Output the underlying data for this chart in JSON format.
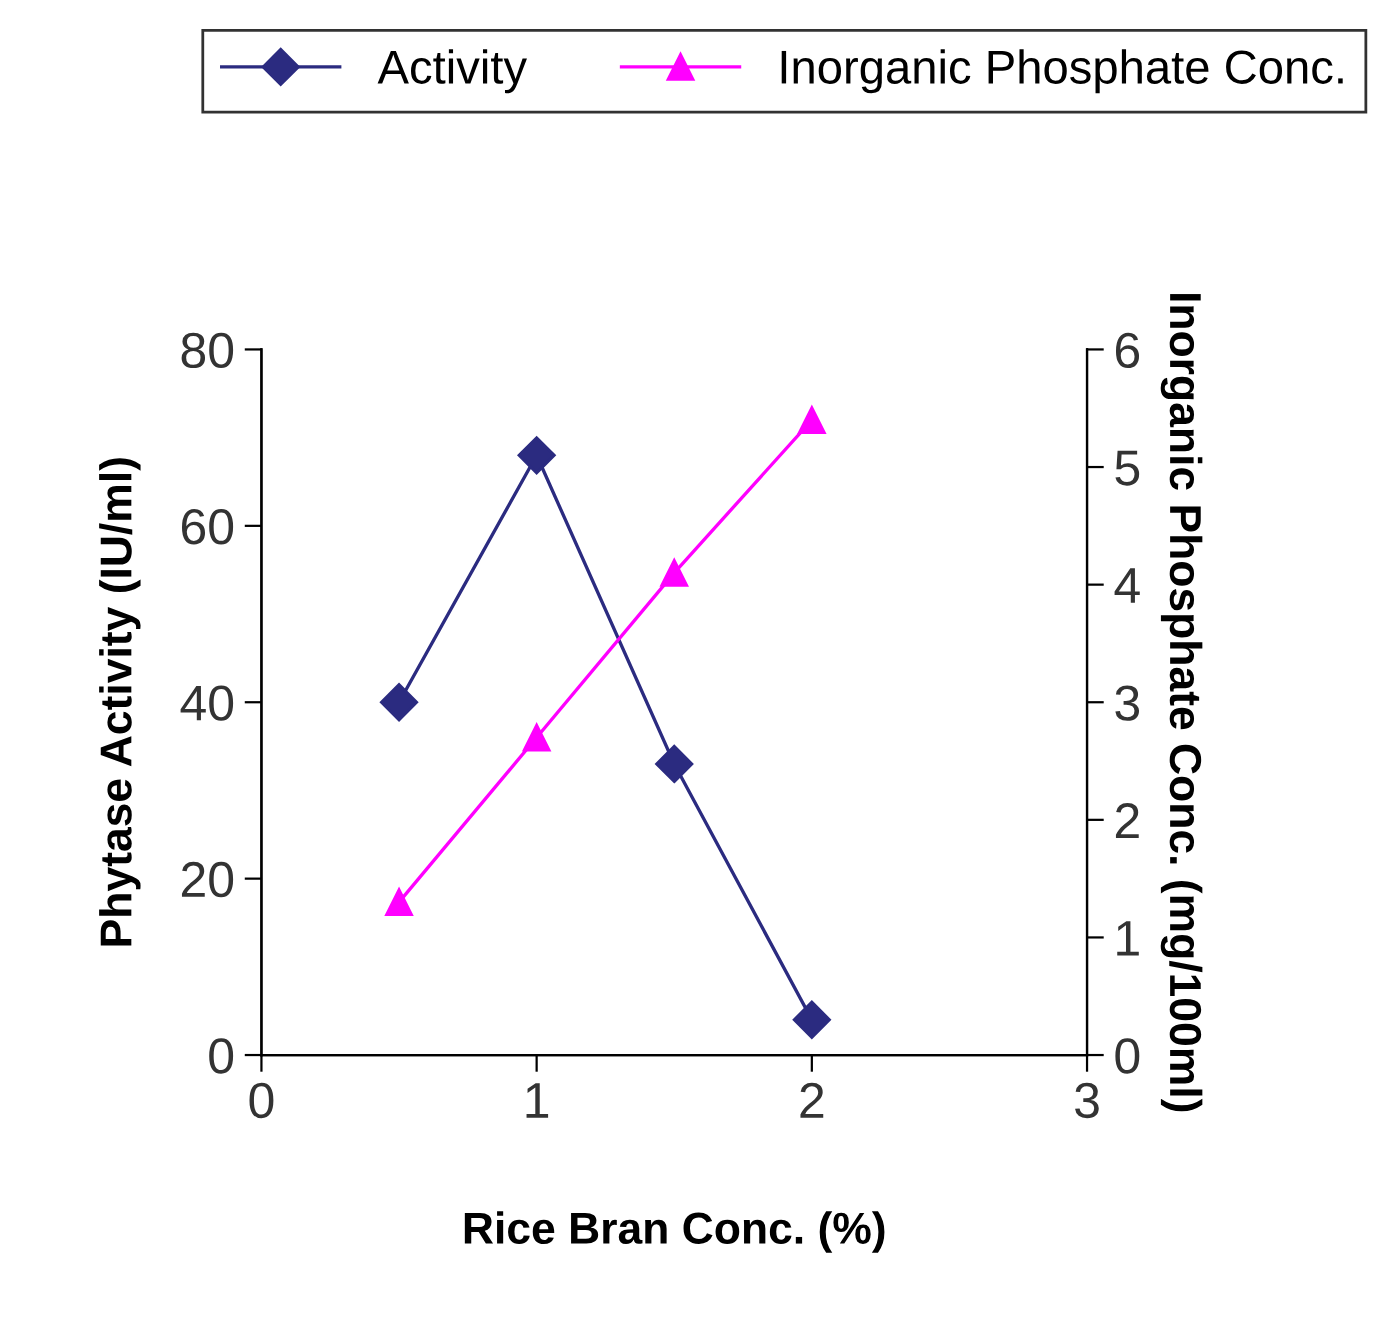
{
  "chart_data": {
    "type": "line",
    "xlabel": "Rice Bran Conc. (%)",
    "ylabel": "Phytase Activity (IU/ml)",
    "y2label": "Inorganic Phosphate Conc. (mg/100ml)",
    "x": [
      0.5,
      1,
      1.5,
      2
    ],
    "series": [
      {
        "name": "Activity",
        "color": "#2b2b80",
        "marker": "diamond",
        "values": [
          40,
          68,
          33,
          4
        ]
      },
      {
        "name": "Inorganic Phosphate Conc.",
        "color": "#ff00ff",
        "marker": "triangle",
        "axis": "y2",
        "values": [
          1.3,
          2.7,
          4.1,
          5.4
        ]
      }
    ],
    "xlim": [
      0,
      3
    ],
    "xticks": [
      0,
      1,
      2,
      3
    ],
    "ylim": [
      0,
      80
    ],
    "yticks": [
      0,
      20,
      40,
      60,
      80
    ],
    "y2lim": [
      0,
      6
    ],
    "y2ticks": [
      0,
      1,
      2,
      3,
      4,
      5,
      6
    ],
    "grid": false,
    "legend": "top"
  }
}
